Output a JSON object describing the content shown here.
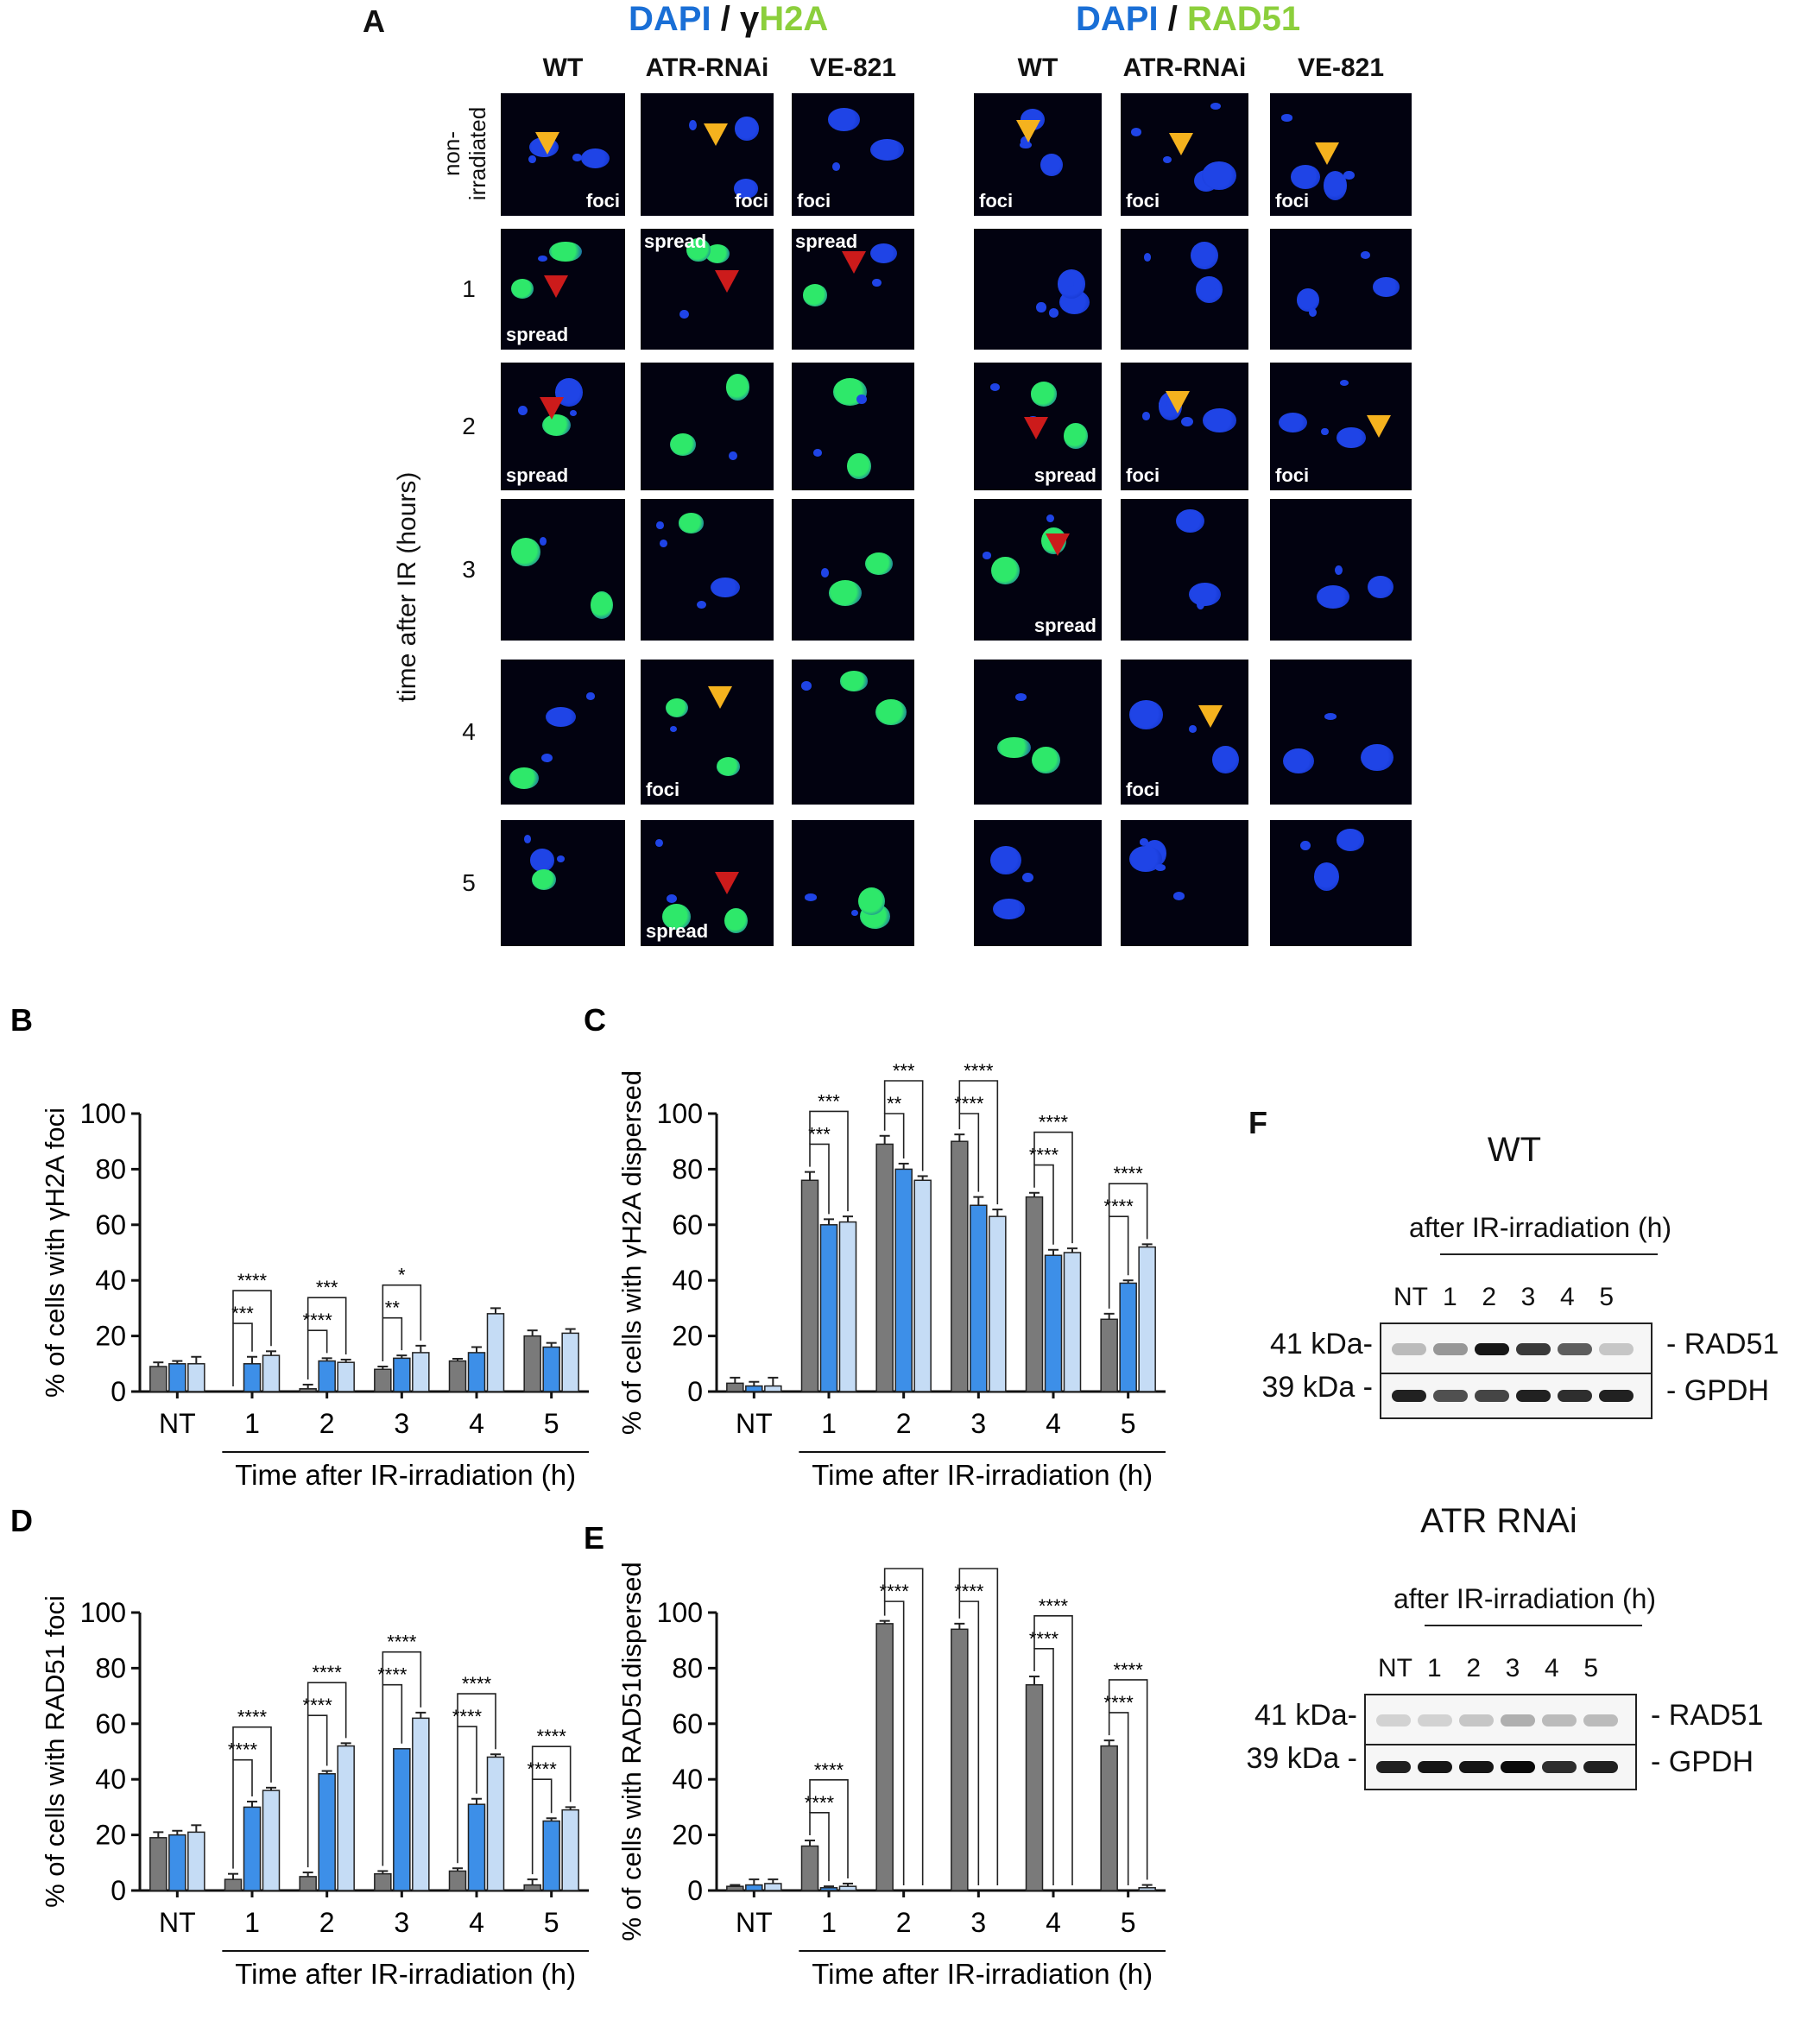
{
  "panel_a": {
    "letter": "A",
    "left_header": {
      "dapi": "DAPI",
      "slash": "/",
      "marker_gamma": "γ",
      "marker_rest": "H2A"
    },
    "right_header": {
      "dapi": "DAPI",
      "slash": "/",
      "marker": "RAD51"
    },
    "columns": [
      "WT",
      "ATR-RNAi",
      "VE-821",
      "WT",
      "ATR-RNAi",
      "VE-821"
    ],
    "rows": [
      "non-\nirradiated",
      "1",
      "2",
      "3",
      "4",
      "5"
    ],
    "row_nonirr_1": "non-",
    "row_nonirr_2": "irradiated",
    "y_axis_label": "time after IR (hours)",
    "tile_labels": {
      "foci": "foci",
      "spread": "spread"
    }
  },
  "chart_data": [
    {
      "panel": "B",
      "type": "bar",
      "ylabel": "% of cells with γH2A foci",
      "xlabel": "Time after IR-irradiation (h)",
      "categories": [
        "NT",
        "1",
        "2",
        "3",
        "4",
        "5"
      ],
      "ylim": [
        0,
        100
      ],
      "yticks": [
        "0",
        "20",
        "40",
        "60",
        "80",
        "100"
      ],
      "series": [
        {
          "values": [
            9,
            0,
            1,
            8,
            11,
            20
          ],
          "errors": [
            1.5,
            0,
            1.5,
            1,
            0.8,
            2
          ]
        },
        {
          "values": [
            10,
            10,
            11,
            12,
            14,
            16
          ],
          "errors": [
            1,
            2.5,
            1,
            1,
            2,
            1.5
          ]
        },
        {
          "values": [
            10,
            13,
            10.5,
            14,
            28,
            21
          ],
          "errors": [
            2.5,
            1.5,
            1,
            2.5,
            2,
            1.5
          ]
        }
      ],
      "sig": [
        {
          "cat": 1,
          "low": "***",
          "high": "****"
        },
        {
          "cat": 2,
          "low": "****",
          "high": "***"
        },
        {
          "cat": 3,
          "low": "**",
          "high": "*"
        }
      ]
    },
    {
      "panel": "C",
      "type": "bar",
      "ylabel": "% of cells with γH2A dispersed",
      "xlabel": "Time after IR-irradiation (h)",
      "categories": [
        "NT",
        "1",
        "2",
        "3",
        "4",
        "5"
      ],
      "ylim": [
        0,
        100
      ],
      "yticks": [
        "0",
        "20",
        "40",
        "60",
        "80",
        "100"
      ],
      "series": [
        {
          "values": [
            3,
            76,
            89,
            90,
            70,
            26
          ],
          "errors": [
            2,
            3,
            3,
            2.5,
            1.5,
            2
          ]
        },
        {
          "values": [
            2,
            60,
            80,
            67,
            49,
            39
          ],
          "errors": [
            1.5,
            2,
            2,
            3,
            2,
            1
          ]
        },
        {
          "values": [
            2,
            61,
            76,
            63,
            50,
            52
          ],
          "errors": [
            3,
            2,
            1.5,
            2.5,
            1.5,
            1
          ]
        }
      ],
      "sig": [
        {
          "cat": 1,
          "low": "***",
          "high": "***"
        },
        {
          "cat": 2,
          "low": "**",
          "high": "***"
        },
        {
          "cat": 3,
          "low": "****",
          "high": "****"
        },
        {
          "cat": 4,
          "low": "****",
          "high": "****"
        },
        {
          "cat": 5,
          "low": "****",
          "high": "****"
        }
      ]
    },
    {
      "panel": "D",
      "type": "bar",
      "ylabel": "% of cells with RAD51 foci",
      "xlabel": "Time after IR-irradiation (h)",
      "categories": [
        "NT",
        "1",
        "2",
        "3",
        "4",
        "5"
      ],
      "ylim": [
        0,
        100
      ],
      "yticks": [
        "0",
        "20",
        "40",
        "60",
        "80",
        "100"
      ],
      "series": [
        {
          "values": [
            19,
            4,
            5,
            6,
            7,
            2
          ],
          "errors": [
            2,
            2,
            1.5,
            1,
            1,
            2
          ]
        },
        {
          "values": [
            20,
            30,
            42,
            51,
            31,
            25
          ],
          "errors": [
            1.5,
            2,
            1,
            0,
            2,
            1
          ]
        },
        {
          "values": [
            21,
            36,
            52,
            62,
            48,
            29
          ],
          "errors": [
            2.5,
            1,
            1,
            2,
            1,
            1
          ]
        }
      ],
      "sig": [
        {
          "cat": 1,
          "low": "****",
          "high": "****"
        },
        {
          "cat": 2,
          "low": "****",
          "high": "****"
        },
        {
          "cat": 3,
          "low": "****",
          "high": "****"
        },
        {
          "cat": 4,
          "low": "****",
          "high": "****"
        },
        {
          "cat": 5,
          "low": "****",
          "high": "****"
        }
      ]
    },
    {
      "panel": "E",
      "type": "bar",
      "ylabel": "% of cells with RAD51dispersed",
      "xlabel": "Time after IR-irradiation (h)",
      "categories": [
        "NT",
        "1",
        "2",
        "3",
        "4",
        "5"
      ],
      "ylim": [
        0,
        100
      ],
      "yticks": [
        "0",
        "20",
        "40",
        "60",
        "80",
        "100"
      ],
      "series": [
        {
          "values": [
            1.5,
            16,
            96,
            94,
            74,
            52
          ],
          "errors": [
            0.5,
            2,
            1,
            2,
            3,
            2
          ]
        },
        {
          "values": [
            2,
            1,
            0,
            0,
            0,
            0
          ],
          "errors": [
            2,
            0.5,
            0,
            0,
            0,
            0
          ]
        },
        {
          "values": [
            2.5,
            1.5,
            0,
            0,
            0,
            1
          ],
          "errors": [
            1.5,
            1,
            0,
            0,
            0,
            1
          ]
        }
      ],
      "sig": [
        {
          "cat": 1,
          "low": "****",
          "high": "****"
        },
        {
          "cat": 2,
          "low": "****",
          "high": ""
        },
        {
          "cat": 3,
          "low": "****",
          "high": ""
        },
        {
          "cat": 4,
          "low": "****",
          "high": "****"
        },
        {
          "cat": 5,
          "low": "****",
          "high": "****"
        }
      ]
    }
  ],
  "colors": {
    "series_1": "#7a7a7a",
    "series_2": "#3d8fe8",
    "series_3": "#c5dcf5",
    "cell_blue": "#1f44e6",
    "cell_green": "#2ee86a",
    "arrow_yellow": "#f5b21e",
    "arrow_red": "#cc1b1b"
  },
  "panel_f": {
    "letter": "F",
    "blots": [
      {
        "title": "WT",
        "subtitle": "after IR-irradiation (h)",
        "lanes": [
          "NT",
          "1",
          "2",
          "3",
          "4",
          "5"
        ],
        "markers": [
          "41 kDa-",
          "39 kDa -"
        ],
        "proteins": [
          "- RAD51",
          "- GPDH"
        ],
        "rad51_intensity": [
          0.25,
          0.4,
          0.95,
          0.8,
          0.65,
          0.2
        ],
        "gpdh_intensity": [
          0.9,
          0.7,
          0.75,
          0.9,
          0.85,
          0.9
        ]
      },
      {
        "title": "ATR RNAi",
        "subtitle": "after IR-irradiation (h)",
        "lanes": [
          "NT",
          "1",
          "2",
          "3",
          "4",
          "5"
        ],
        "markers": [
          "41 kDa-",
          "39 kDa -"
        ],
        "proteins": [
          "- RAD51",
          "- GPDH"
        ],
        "rad51_intensity": [
          0.15,
          0.15,
          0.2,
          0.3,
          0.25,
          0.25
        ],
        "gpdh_intensity": [
          0.9,
          0.95,
          0.95,
          1.0,
          0.85,
          0.9
        ]
      }
    ]
  }
}
